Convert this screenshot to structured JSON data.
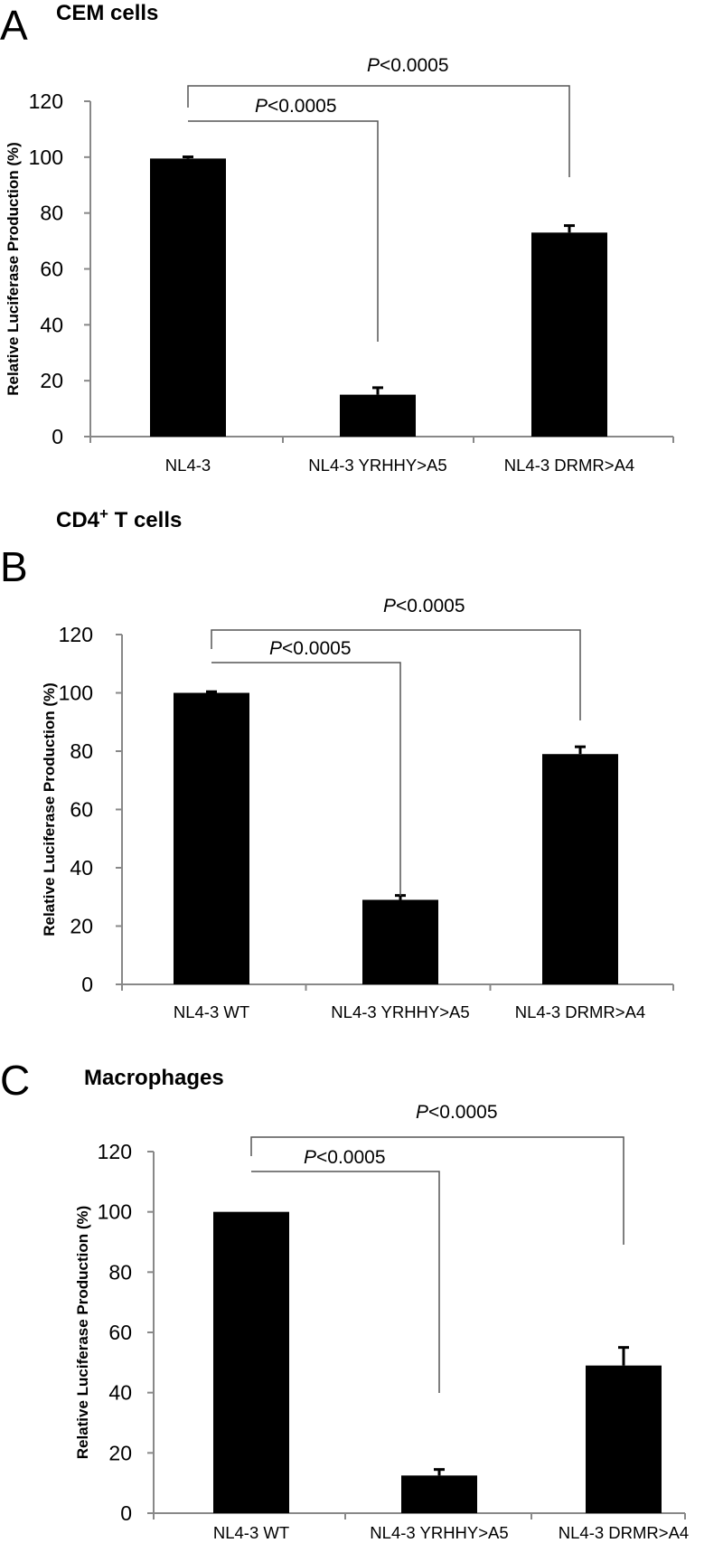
{
  "chart_data": [
    {
      "type": "bar",
      "panel": "A",
      "title": "CEM cells",
      "ylabel": "Relative Luciferase Production (%)",
      "ylim": [
        0,
        120
      ],
      "yticks": [
        "0",
        "20",
        "40",
        "60",
        "80",
        "100",
        "120"
      ],
      "categories": [
        "NL4-3",
        "NL4-3 YRHHY>A5",
        "NL4-3 DRMR>A4"
      ],
      "values": [
        99.5,
        15,
        73
      ],
      "errors": [
        0.6,
        2.5,
        2.5
      ],
      "significance": [
        {
          "text_italic": "P",
          "text": "<0.0005",
          "from": 0,
          "to": 1
        },
        {
          "text_italic": "P",
          "text": "<0.0005",
          "from": 0,
          "to": 2
        }
      ]
    },
    {
      "type": "bar",
      "panel": "B",
      "title": "CD4",
      "title_superscript": "+",
      "title_suffix": " T cells",
      "ylabel": "Relative Luciferase Production (%)",
      "ylim": [
        0,
        120
      ],
      "yticks": [
        "0",
        "20",
        "40",
        "60",
        "80",
        "100",
        "120"
      ],
      "categories": [
        "NL4-3 WT",
        "NL4-3 YRHHY>A5",
        "NL4-3 DRMR>A4"
      ],
      "values": [
        100,
        29,
        79
      ],
      "errors": [
        0.4,
        1.5,
        2.5
      ],
      "significance": [
        {
          "text_italic": "P",
          "text": "<0.0005",
          "from": 0,
          "to": 1
        },
        {
          "text_italic": "P",
          "text": "<0.0005",
          "from": 0,
          "to": 2
        }
      ]
    },
    {
      "type": "bar",
      "panel": "C",
      "title": "Macrophages",
      "ylabel": "Relative Luciferase Production (%)",
      "ylim": [
        0,
        120
      ],
      "yticks": [
        "0",
        "20",
        "40",
        "60",
        "80",
        "100",
        "120"
      ],
      "categories": [
        "NL4-3 WT",
        "NL4-3 YRHHY>A5",
        "NL4-3 DRMR>A4"
      ],
      "values": [
        100,
        12.5,
        49
      ],
      "errors": [
        0,
        2,
        6
      ],
      "significance": [
        {
          "text_italic": "P",
          "text": "<0.0005",
          "from": 0,
          "to": 1
        },
        {
          "text_italic": "P",
          "text": "<0.0005",
          "from": 0,
          "to": 2
        }
      ]
    }
  ],
  "colors": {
    "bar": "#000000",
    "axis": "#888888",
    "text": "#000000",
    "bracket": "#555555"
  }
}
